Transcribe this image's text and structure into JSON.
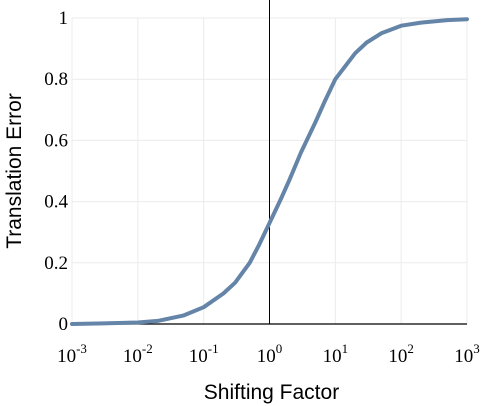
{
  "chart_data": {
    "type": "line",
    "xlabel": "Shifting Factor",
    "ylabel": "Translation Error",
    "xscale": "log",
    "xlim": [
      0.001,
      1000
    ],
    "ylim": [
      0,
      1
    ],
    "grid": true,
    "x_ticks": [
      0.001,
      0.01,
      0.1,
      1,
      10,
      100,
      1000
    ],
    "x_tick_labels": [
      {
        "base": "10",
        "exp": "-3"
      },
      {
        "base": "10",
        "exp": "-2"
      },
      {
        "base": "10",
        "exp": "-1"
      },
      {
        "base": "10",
        "exp": "0"
      },
      {
        "base": "10",
        "exp": "1"
      },
      {
        "base": "10",
        "exp": "2"
      },
      {
        "base": "10",
        "exp": "3"
      }
    ],
    "y_ticks": [
      0,
      0.2,
      0.4,
      0.6,
      0.8,
      1
    ],
    "y_tick_labels": [
      "0",
      "0.2",
      "0.4",
      "0.6",
      "0.8",
      "1"
    ],
    "reference_line_x": 1,
    "series": [
      {
        "color": "#6484a8",
        "x": [
          0.001,
          0.003,
          0.01,
          0.02,
          0.05,
          0.1,
          0.2,
          0.3,
          0.5,
          0.7,
          1,
          1.5,
          2,
          3,
          5,
          7,
          10,
          20,
          30,
          50,
          100,
          200,
          500,
          1000
        ],
        "y": [
          0.0,
          0.002,
          0.005,
          0.01,
          0.028,
          0.055,
          0.1,
          0.135,
          0.2,
          0.26,
          0.33,
          0.41,
          0.47,
          0.56,
          0.66,
          0.73,
          0.8,
          0.885,
          0.92,
          0.95,
          0.975,
          0.985,
          0.993,
          0.996
        ]
      }
    ]
  }
}
